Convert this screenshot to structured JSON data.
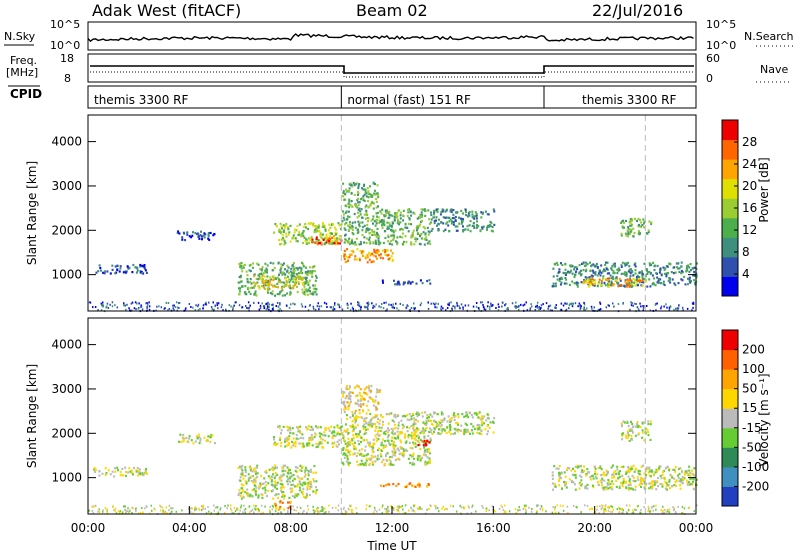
{
  "header": {
    "title": "Adak West (fitACF)",
    "beam": "Beam 02",
    "date": "22/Jul/2016"
  },
  "nsky_panel": {
    "left_label": "N.Sky",
    "left_tick_top": "10^5",
    "left_tick_bottom": "10^0",
    "right_tick_top": "10^5",
    "right_tick_bottom": "10^0",
    "right_label": "N.Search"
  },
  "freq_panel": {
    "left_label_1": "Freq.",
    "left_label_2": "[MHz]",
    "left_tick_top": "18",
    "left_tick_bottom": "8",
    "right_tick_top": "60",
    "right_tick_bottom": "0",
    "right_label": "Nave"
  },
  "cpid_panel": {
    "label": "CPID",
    "segments": [
      {
        "name": "themis 3300 RF",
        "start_hour": 0,
        "end_hour": 10
      },
      {
        "name": "normal (fast) 151 RF",
        "start_hour": 10,
        "end_hour": 18
      },
      {
        "name": "themis 3300 RF",
        "start_hour": 18,
        "end_hour": 24
      }
    ],
    "second_label_x_hour": 19.5
  },
  "power_panel": {
    "ylabel": "Slant Range [km]",
    "colorbar_label": "Power [dB]",
    "colorbar_ticks": [
      "28",
      "24",
      "20",
      "16",
      "12",
      "8",
      "4"
    ],
    "colors": [
      "#0000ee",
      "#3050b0",
      "#3f8f7f",
      "#4caf4c",
      "#9acd32",
      "#e0e000",
      "#ffa500",
      "#ff6600",
      "#ee0000"
    ]
  },
  "velocity_panel": {
    "ylabel": "Velocity [m s⁻¹]",
    "yaxis_label": "Slant Range [km]",
    "colorbar_ticks": [
      "200",
      "100",
      "50",
      "15",
      "-15",
      "-50",
      "-100",
      "-200"
    ],
    "colors": [
      "#2040c0",
      "#3f8fbf",
      "#2e8b57",
      "#66cc33",
      "#bbbbbb",
      "#ffd700",
      "#ffa500",
      "#ff6000",
      "#ee0000"
    ]
  },
  "x_axis": {
    "label": "Time UT",
    "ticks": [
      "00:00",
      "04:00",
      "08:00",
      "12:00",
      "16:00",
      "20:00",
      "00:00"
    ]
  },
  "chart_data": {
    "type": "heatmap",
    "x_unit": "hours UT",
    "xlim": [
      0,
      24
    ],
    "ylim_km": [
      180,
      4600
    ],
    "y_ticks": [
      1000,
      2000,
      3000,
      4000
    ],
    "vertical_markers_hours": [
      10,
      22
    ],
    "power_regions": [
      {
        "t0": 0.2,
        "t1": 2.3,
        "r0": 1050,
        "r1": 1250,
        "level": 1
      },
      {
        "t0": 3.5,
        "t1": 5.0,
        "r0": 1800,
        "r1": 2000,
        "level": 1
      },
      {
        "t0": 5.9,
        "t1": 9.0,
        "r0": 550,
        "r1": 1300,
        "level": 3
      },
      {
        "t0": 6.5,
        "t1": 8.5,
        "r0": 700,
        "r1": 1000,
        "level": 5
      },
      {
        "t0": 7.3,
        "t1": 10.0,
        "r0": 1700,
        "r1": 2200,
        "level": 4
      },
      {
        "t0": 8.8,
        "t1": 10.0,
        "r0": 1700,
        "r1": 1900,
        "level": 7
      },
      {
        "t0": 10.0,
        "t1": 12.0,
        "r0": 1300,
        "r1": 1600,
        "level": 6
      },
      {
        "t0": 10.0,
        "t1": 13.5,
        "r0": 1700,
        "r1": 2500,
        "level": 3
      },
      {
        "t0": 10.0,
        "t1": 11.5,
        "r0": 2500,
        "r1": 3100,
        "level": 3
      },
      {
        "t0": 13.5,
        "t1": 16.0,
        "r0": 2000,
        "r1": 2500,
        "level": 2
      },
      {
        "t0": 11.5,
        "t1": 13.5,
        "r0": 800,
        "r1": 900,
        "level": 1
      },
      {
        "t0": 18.3,
        "t1": 24.0,
        "r0": 750,
        "r1": 1300,
        "level": 2
      },
      {
        "t0": 19.5,
        "t1": 22.0,
        "r0": 750,
        "r1": 950,
        "level": 6
      },
      {
        "t0": 21.0,
        "t1": 22.2,
        "r0": 1850,
        "r1": 2300,
        "level": 3
      }
    ],
    "velocity_regions": [
      {
        "t0": 0.2,
        "t1": 2.3,
        "r0": 1050,
        "r1": 1250,
        "level": 4
      },
      {
        "t0": 3.5,
        "t1": 5.0,
        "r0": 1800,
        "r1": 2000,
        "level": 4
      },
      {
        "t0": 5.9,
        "t1": 9.0,
        "r0": 550,
        "r1": 1300,
        "level": 4
      },
      {
        "t0": 7.3,
        "t1": 10.0,
        "r0": 1700,
        "r1": 2200,
        "level": 4
      },
      {
        "t0": 10.0,
        "t1": 13.5,
        "r0": 1300,
        "r1": 2500,
        "level": 4
      },
      {
        "t0": 10.0,
        "t1": 11.5,
        "r0": 2500,
        "r1": 3100,
        "level": 5
      },
      {
        "t0": 13.0,
        "t1": 13.6,
        "r0": 1750,
        "r1": 1900,
        "level": 8
      },
      {
        "t0": 13.5,
        "t1": 16.0,
        "r0": 2000,
        "r1": 2500,
        "level": 4
      },
      {
        "t0": 11.5,
        "t1": 13.5,
        "r0": 800,
        "r1": 900,
        "level": 6
      },
      {
        "t0": 18.3,
        "t1": 24.0,
        "r0": 750,
        "r1": 1300,
        "level": 4
      },
      {
        "t0": 21.0,
        "t1": 22.2,
        "r0": 1850,
        "r1": 2300,
        "level": 4
      },
      {
        "t0": 7.3,
        "t1": 8.0,
        "r0": 300,
        "r1": 500,
        "level": 6
      }
    ]
  }
}
